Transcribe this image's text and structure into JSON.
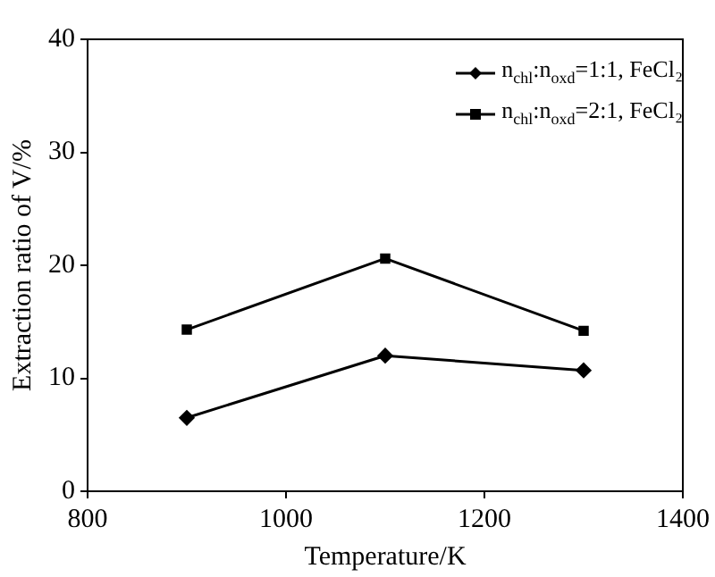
{
  "chart_data": {
    "type": "line",
    "xlabel": "Temperature/K",
    "ylabel": "Extraction ratio of V/%",
    "x": [
      900,
      1100,
      1300
    ],
    "series": [
      {
        "name": "n$_{chl}$:n$_{oxd}$=1:1, FeCl₂",
        "color": "#000000",
        "marker": "diamond",
        "values": [
          6.5,
          12,
          10.7
        ]
      },
      {
        "name": "n$_{chl}$:n$_{oxd}$=2:1, FeCl₂",
        "color": "#000000",
        "marker": "square",
        "values": [
          14.3,
          20.6,
          14.2
        ]
      }
    ],
    "xlim": [
      800,
      1400
    ],
    "xticks": [
      800,
      1000,
      1200,
      1400
    ],
    "ylim": [
      0,
      40
    ],
    "yticks": [
      0,
      10,
      20,
      30,
      40
    ],
    "grid": false,
    "legend": "top right",
    "line_style": "solid"
  }
}
